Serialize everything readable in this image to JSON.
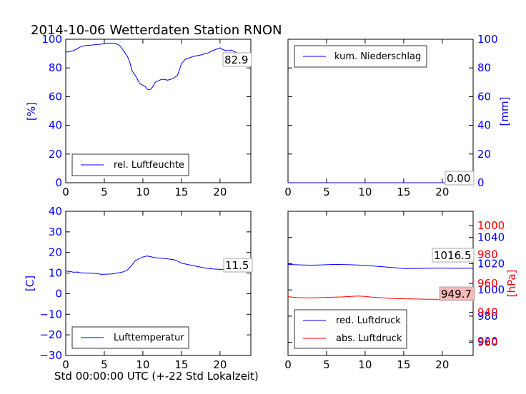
{
  "title": "2014-10-06 Wetterdaten Station RNON",
  "xlabel": "Std 00:00:00 UTC (+-22 Std Lokalzeit)",
  "colors": {
    "blue": "#0000ff",
    "red": "#ff0000",
    "red_box": "#f4b9b9"
  },
  "chart_data": [
    {
      "type": "line",
      "id": "humidity",
      "ylabel": "[%]",
      "ylabel_side": "left",
      "ylim": [
        0,
        100
      ],
      "yticks": [
        0,
        20,
        40,
        60,
        80,
        100
      ],
      "xlim": [
        0,
        24
      ],
      "xticks": [
        0,
        5,
        10,
        15,
        20
      ],
      "legend_position": "lower-left",
      "annotation": "82.9",
      "grid": false,
      "series": [
        {
          "name": "rel. Luftfeuchte",
          "color": "#0000ff",
          "x": [
            0,
            0.5,
            1,
            1.5,
            2,
            2.5,
            3,
            3.5,
            4,
            4.5,
            5,
            5.5,
            6,
            6.5,
            7,
            7.5,
            8,
            8.3,
            8.6,
            9,
            9.3,
            9.6,
            10,
            10.3,
            10.6,
            11,
            11.3,
            11.6,
            12,
            12.4,
            12.8,
            13.2,
            13.6,
            14,
            14.5,
            15,
            15.5,
            16,
            16.5,
            17,
            17.5,
            18,
            18.5,
            19,
            19.5,
            20,
            20.5,
            21,
            21.5,
            22,
            22.5,
            23,
            23.5,
            24
          ],
          "y": [
            91,
            91.5,
            92,
            93.5,
            95,
            95.5,
            95.8,
            96,
            96.3,
            96.5,
            97,
            97.3,
            97.3,
            97.1,
            95.5,
            92,
            88,
            84,
            78,
            75,
            72,
            69,
            68,
            67,
            65,
            65,
            67,
            70,
            71,
            72,
            72,
            71.5,
            72,
            73,
            75,
            83,
            86,
            87,
            88,
            88.5,
            89,
            90,
            90.5,
            92,
            93,
            94,
            92.5,
            92,
            92.5,
            91,
            90,
            88,
            84,
            82.9
          ]
        }
      ]
    },
    {
      "type": "line",
      "id": "precip",
      "ylabel": "[mm]",
      "ylabel_side": "right",
      "ylim": [
        0,
        100
      ],
      "yticks": [
        0,
        20,
        40,
        60,
        80,
        100
      ],
      "xlim": [
        0,
        24
      ],
      "xticks": [
        0,
        5,
        10,
        15,
        20
      ],
      "legend_position": "top-left",
      "annotation": "0.00",
      "grid": false,
      "series": [
        {
          "name": "kum. Niederschlag",
          "color": "#0000ff",
          "x": [
            0,
            24
          ],
          "y": [
            0,
            0
          ]
        }
      ]
    },
    {
      "type": "line",
      "id": "temperature",
      "ylabel": "[C]",
      "ylabel_side": "left",
      "ylim": [
        -30,
        40
      ],
      "yticks": [
        -30,
        -20,
        -10,
        0,
        10,
        20,
        30,
        40
      ],
      "xlim": [
        0,
        24
      ],
      "xticks": [
        0,
        5,
        10,
        15,
        20
      ],
      "legend_position": "lower-left",
      "annotation": "11.5",
      "grid": false,
      "series": [
        {
          "name": "Lufttemperatur",
          "color": "#0000ff",
          "x": [
            0,
            0.5,
            1,
            1.5,
            2,
            3,
            4,
            4.5,
            5,
            6,
            7,
            7.5,
            8,
            8.5,
            9,
            9.5,
            10,
            10.5,
            11,
            11.5,
            12,
            13,
            14,
            14.5,
            15,
            16,
            17,
            18,
            19,
            20,
            21,
            22,
            23,
            24
          ],
          "y": [
            11,
            10.8,
            10.4,
            10.5,
            10.1,
            10,
            9.8,
            9.4,
            9.4,
            9.6,
            10.2,
            10.6,
            11.5,
            13.5,
            16,
            17,
            17.8,
            18.3,
            18,
            17.5,
            17.3,
            17,
            16.5,
            15.8,
            14.8,
            14,
            13.2,
            12.5,
            12,
            11.8,
            11.8,
            11.8,
            11.6,
            11.5
          ]
        }
      ]
    },
    {
      "type": "line",
      "id": "pressure",
      "ylabel": "[hPa]",
      "ylabel_side": "right",
      "ylim": [
        950,
        1060
      ],
      "yticks": [
        960,
        980,
        1000,
        1020,
        1040
      ],
      "y2lim": [
        910,
        1010
      ],
      "y2ticks": [
        920,
        940,
        960,
        980,
        1000
      ],
      "xlim": [
        0,
        24
      ],
      "xticks": [
        0,
        5,
        10,
        15,
        20
      ],
      "legend_position": "lower-left",
      "annotations": [
        "1016.5",
        "949.7"
      ],
      "grid": false,
      "series": [
        {
          "name": "red. Luftdruck",
          "color": "#0000ff",
          "axis": "left",
          "x": [
            0,
            1,
            2,
            3,
            4,
            5,
            6,
            7,
            8,
            9,
            10,
            11,
            12,
            13,
            14,
            15,
            16,
            17,
            18,
            19,
            20,
            21,
            22,
            23,
            24
          ],
          "y": [
            1019.5,
            1019.2,
            1019,
            1018.9,
            1019,
            1019.2,
            1019.5,
            1019.4,
            1019.2,
            1019,
            1018.7,
            1018.3,
            1017.8,
            1017.3,
            1016.8,
            1016.3,
            1016.3,
            1016.4,
            1016.5,
            1016.6,
            1016.7,
            1016.6,
            1016.5,
            1016.5,
            1016.5
          ]
        },
        {
          "name": "abs. Luftdruck",
          "color": "#ff0000",
          "axis": "right",
          "x": [
            0,
            1,
            2,
            3,
            4,
            5,
            6,
            7,
            8,
            9,
            10,
            11,
            12,
            13,
            14,
            15,
            16,
            17,
            18,
            19,
            20,
            21,
            22,
            23,
            24
          ],
          "y": [
            950.8,
            950.2,
            950,
            949.9,
            950.1,
            950.3,
            950.5,
            950.6,
            950.9,
            951.2,
            951.0,
            950.4,
            950.1,
            949.7,
            949.4,
            949.3,
            949.2,
            949.1,
            949.0,
            949.0,
            948.9,
            949.1,
            949.3,
            949.6,
            949.7
          ]
        }
      ]
    }
  ]
}
